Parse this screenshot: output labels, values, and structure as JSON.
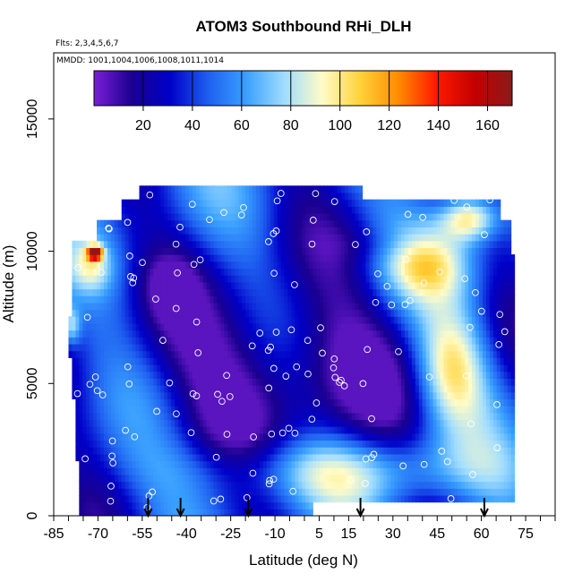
{
  "chart_data": {
    "type": "heatmap",
    "title": "ATOM3 Southbound RHi_DLH",
    "flights_note": "Flts: 2,3,4,5,6,7",
    "dates_note": "MMDD: 1001,1004,1006,1008,1011,1014",
    "xlabel": "Latitude (deg N)",
    "ylabel": "Altitude (m)",
    "xlim": [
      -85,
      85
    ],
    "ylim": [
      0,
      17500
    ],
    "x_ticks": [
      -85,
      -70,
      -55,
      -40,
      -25,
      -10,
      5,
      15,
      30,
      45,
      60,
      75
    ],
    "x_tick_labels": [
      "-85",
      "-70",
      "-55",
      "-40",
      "-25",
      "-10",
      "5",
      "15",
      "30",
      "45",
      "60",
      "75"
    ],
    "y_ticks": [
      0,
      5000,
      10000,
      15000
    ],
    "y_tick_labels": [
      "0",
      "5000",
      "10000",
      "15000"
    ],
    "colorbar": {
      "min": 0,
      "max": 170,
      "ticks": [
        20,
        40,
        60,
        80,
        100,
        120,
        140,
        160
      ],
      "tick_labels": [
        "20",
        "40",
        "60",
        "80",
        "100",
        "120",
        "140",
        "160"
      ],
      "colors": [
        "#7a1fd6",
        "#1a0090",
        "#0000c8",
        "#1e5ff0",
        "#3aa0ff",
        "#9fdcff",
        "#fffcc8",
        "#ffd23a",
        "#ff8c00",
        "#ff1a00",
        "#c40000",
        "#8b1a1a"
      ]
    },
    "arrow_latitudes": [
      -53,
      -42,
      -19,
      19,
      61
    ],
    "curtain": {
      "lat_range": [
        -78,
        71
      ],
      "alt_range": [
        500,
        12500
      ]
    }
  }
}
